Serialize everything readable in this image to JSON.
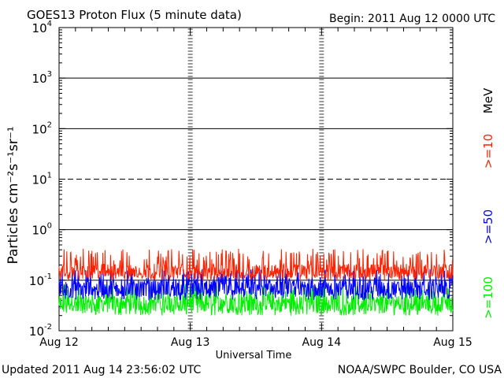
{
  "header": {
    "title": "GOES13 Proton Flux (5 minute data)",
    "begin": "Begin: 2011 Aug 12 0000 UTC"
  },
  "footer": {
    "updated": "Updated 2011 Aug 14 23:56:02 UTC",
    "credit": "NOAA/SWPC Boulder, CO USA"
  },
  "chart_data": {
    "type": "line",
    "title": "GOES13 Proton Flux (5 minute data)",
    "xlabel": "Universal Time",
    "ylabel": "Particles cm⁻²s⁻¹sr⁻¹",
    "unit_label": "MeV",
    "y_scale": "log",
    "ylim": [
      0.01,
      10000
    ],
    "y_ticks": [
      {
        "value": 0.01,
        "base": "10",
        "exp": "-2"
      },
      {
        "value": 0.1,
        "base": "10",
        "exp": "-1"
      },
      {
        "value": 1,
        "base": "10",
        "exp": "0"
      },
      {
        "value": 10,
        "base": "10",
        "exp": "1"
      },
      {
        "value": 100,
        "base": "10",
        "exp": "2"
      },
      {
        "value": 1000,
        "base": "10",
        "exp": "3"
      },
      {
        "value": 10000,
        "base": "10",
        "exp": "4"
      }
    ],
    "x_ticks": [
      "Aug 12",
      "Aug 13",
      "Aug 14",
      "Aug 15"
    ],
    "xlim_days": [
      0,
      3
    ],
    "thresholds": [
      {
        "value": 10,
        "style": "dashed"
      },
      {
        "value": 0.1,
        "style": "solid"
      }
    ],
    "grid": "horizontal at decades",
    "legend_placement": "right side, vertical",
    "series": [
      {
        "name": ">=10",
        "color": "#ff2200",
        "baseline": 0.15,
        "high": 0.3,
        "low": 0.1
      },
      {
        "name": ">=50",
        "color": "#0000ff",
        "baseline": 0.07,
        "high": 0.12,
        "low": 0.04
      },
      {
        "name": ">=100",
        "color": "#00ee00",
        "baseline": 0.035,
        "high": 0.06,
        "low": 0.02
      }
    ]
  }
}
